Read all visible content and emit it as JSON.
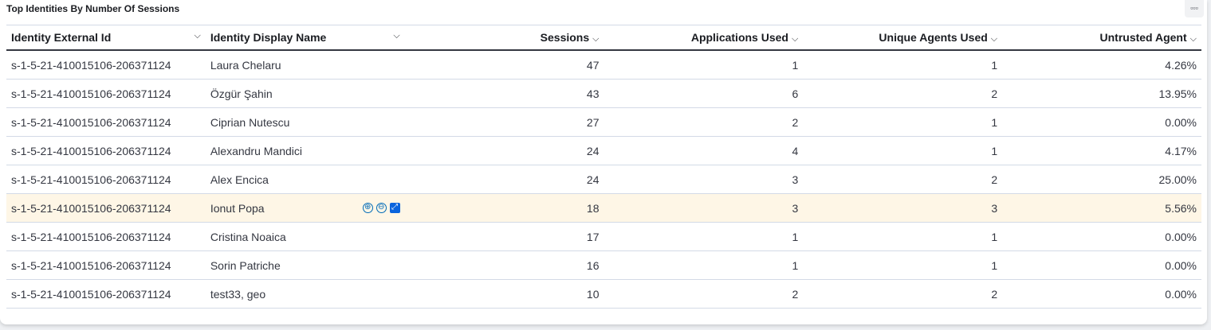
{
  "panel": {
    "title": "Top Identities By Number Of Sessions",
    "menu_icon": "ellipsis-icon"
  },
  "columns": [
    "Identity External Id",
    "Identity Display Name",
    "Sessions",
    "Applications Used",
    "Unique Agents Used",
    "Untrusted Agent"
  ],
  "rows": [
    {
      "id": "s-1-5-21-410015106-206371124",
      "name": "Laura Chelaru",
      "sessions": "47",
      "apps": "1",
      "agents": "1",
      "untrusted": "4.26%"
    },
    {
      "id": "s-1-5-21-410015106-206371124",
      "name": "Özgür Şahin",
      "sessions": "43",
      "apps": "6",
      "agents": "2",
      "untrusted": "13.95%"
    },
    {
      "id": "s-1-5-21-410015106-206371124",
      "name": "Ciprian Nutescu",
      "sessions": "27",
      "apps": "2",
      "agents": "1",
      "untrusted": "0.00%"
    },
    {
      "id": "s-1-5-21-410015106-206371124",
      "name": "Alexandru Mandici",
      "sessions": "24",
      "apps": "4",
      "agents": "1",
      "untrusted": "4.17%"
    },
    {
      "id": "s-1-5-21-410015106-206371124",
      "name": "Alex Encica",
      "sessions": "24",
      "apps": "3",
      "agents": "2",
      "untrusted": "25.00%"
    },
    {
      "id": "s-1-5-21-410015106-206371124",
      "name": "Ionut Popa",
      "sessions": "18",
      "apps": "3",
      "agents": "3",
      "untrusted": "5.56%"
    },
    {
      "id": "s-1-5-21-410015106-206371124",
      "name": "Cristina Noaica",
      "sessions": "17",
      "apps": "1",
      "agents": "1",
      "untrusted": "0.00%"
    },
    {
      "id": "s-1-5-21-410015106-206371124",
      "name": "Sorin Patriche",
      "sessions": "16",
      "apps": "1",
      "agents": "1",
      "untrusted": "0.00%"
    },
    {
      "id": "s-1-5-21-410015106-206371124",
      "name": "test33, geo",
      "sessions": "10",
      "apps": "2",
      "agents": "2",
      "untrusted": "0.00%"
    }
  ],
  "cell_actions": {
    "filter_in": "⊕",
    "filter_out": "⊖",
    "expand": "⤢"
  }
}
